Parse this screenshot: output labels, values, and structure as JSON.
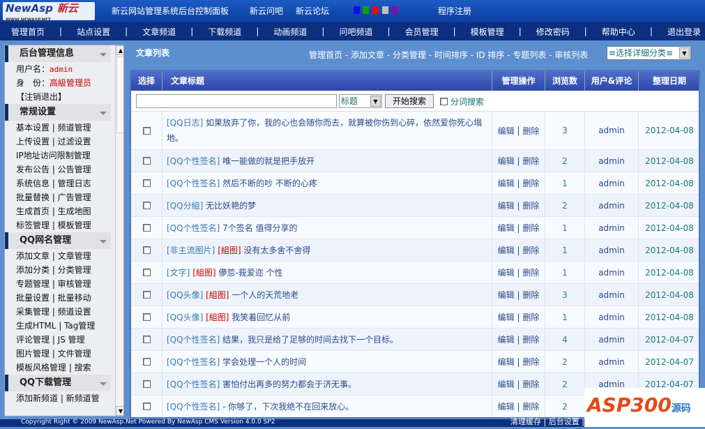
{
  "top": {
    "logo": "NewAsp",
    "logo_cn": "新云",
    "logo_url": "WWW.NEWASP.NET",
    "title": "新云网站管理系统后台控制面板",
    "links": [
      "新云问吧",
      "新云论坛"
    ],
    "register": "程序注册",
    "swatches": [
      "#1010e0",
      "#10a010",
      "#e01010",
      "#c0c0c0",
      "#8010a0"
    ]
  },
  "nav": [
    "管理首页",
    "站点设置",
    "文章频道",
    "下载频道",
    "动画频道",
    "问吧频道",
    "会员管理",
    "模板管理",
    "修改密码",
    "帮助中心",
    "退出登录"
  ],
  "sidebar": {
    "info_title": "后台管理信息",
    "user_label": "用户名：",
    "user": "admin",
    "role_label": "身　份：",
    "role": "高級管理员",
    "logout": "【注销退出】",
    "sections": [
      {
        "title": "常规设置",
        "items": [
          "基本设置 | 频道管理",
          "上传设置 | 过滤设置",
          "IP地址访问限制管理",
          "发布公告 | 公告管理",
          "系统信息 | 管理日志",
          "批量替换 | 广告管理",
          "生成首页 | 生成地图",
          "标签管理 | 模板管理"
        ]
      },
      {
        "title": "QQ网名管理",
        "items": [
          "添加文章 | 文章管理",
          "添加分类 | 分类管理",
          "专题管理 | 审核管理",
          "批量设置 | 批量移动",
          "采集管理 | 频道设置",
          "生成HTML | Tag管理",
          "评论管理 | JS 管理",
          "图片管理 | 文件管理",
          "模板风格管理 | 搜索"
        ]
      },
      {
        "title": "QQ下载管理",
        "items": [
          "添加新频道 | 新频道管"
        ]
      }
    ]
  },
  "main": {
    "title": "文章列表",
    "links": "管理首页 - 添加文章 - 分类管理 - 时间排序 - ID 排序 - 专题列表 - 审核列表",
    "category_select": "≡选择详细分类≡",
    "columns": [
      "选择",
      "文章标题",
      "管理操作",
      "浏览数",
      "用户&评论",
      "整理日期"
    ],
    "search": {
      "value": "",
      "field": "标题",
      "button": "开始搜索",
      "segment_label": "分词搜索"
    },
    "edit": "编辑",
    "delete": "删除",
    "rows": [
      {
        "cat": "[QQ日志]",
        "tag": "",
        "title": "如果放弃了你，我的心也会随你而去，就算被你伤到心碎，依然爱你死心塌地。",
        "views": "3",
        "user": "admin",
        "date": "2012-04-08"
      },
      {
        "cat": "[QQ个性签名]",
        "tag": "",
        "title": "唯一能做的就是把手放开",
        "views": "2",
        "user": "admin",
        "date": "2012-04-08"
      },
      {
        "cat": "[QQ个性签名]",
        "tag": "",
        "title": "然后不断的吵 不断的心疼",
        "views": "1",
        "user": "admin",
        "date": "2012-04-08"
      },
      {
        "cat": "[QQ分組]",
        "tag": "",
        "title": "无比妖艳的梦",
        "views": "2",
        "user": "admin",
        "date": "2012-04-08"
      },
      {
        "cat": "[QQ个性签名]",
        "tag": "",
        "title": "7个签名 值得分享的",
        "views": "1",
        "user": "admin",
        "date": "2012-04-08"
      },
      {
        "cat": "[非主流图片]",
        "tag": "[組图]",
        "title": "没有太多舍不舍得",
        "views": "1",
        "user": "admin",
        "date": "2012-04-08"
      },
      {
        "cat": "[文字]",
        "tag": "[組图]",
        "title": "儚莣-莪爱迩 个性",
        "views": "1",
        "user": "admin",
        "date": "2012-04-08"
      },
      {
        "cat": "[QQ头像]",
        "tag": "[組图]",
        "title": "一个人的天荒地老",
        "views": "3",
        "user": "admin",
        "date": "2012-04-08"
      },
      {
        "cat": "[QQ头像]",
        "tag": "[組图]",
        "title": "我笑着回忆从前",
        "views": "1",
        "user": "admin",
        "date": "2012-04-08"
      },
      {
        "cat": "[QQ个性签名]",
        "tag": "",
        "title": "结果，我只是给了足够的时间去找下一个目标。",
        "views": "4",
        "user": "admin",
        "date": "2012-04-07"
      },
      {
        "cat": "[QQ个性签名]",
        "tag": "",
        "title": "学会处理一个人的时间",
        "views": "2",
        "user": "admin",
        "date": "2012-04-07"
      },
      {
        "cat": "[QQ个性签名]",
        "tag": "",
        "title": "害怕付出再多的努力都会于济无事。",
        "views": "2",
        "user": "admin",
        "date": "2012-04-07"
      },
      {
        "cat": "[QQ个性签名]",
        "tag": "",
        "title": "- 你够了，下次我绝不在回来放心。",
        "views": "2",
        "user": "",
        "date": ""
      }
    ]
  },
  "footer": {
    "copyright": "Copyright Right © 2009 NewAsp.Net Powered By NewAsp CMS Version 4.0.0 SP2",
    "links": "清理缓存 | 后台设置 | 发布公告列表 | 注销退出"
  },
  "watermark": {
    "text": "ASP300",
    "sub": "源码 .com"
  }
}
